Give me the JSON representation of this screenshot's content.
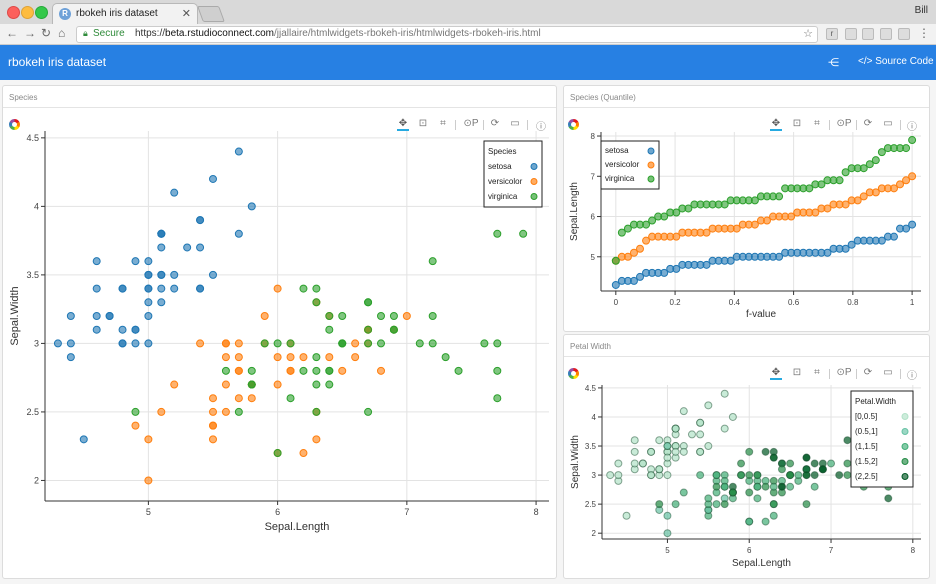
{
  "browser": {
    "tab_title": "rbokeh iris dataset",
    "tab_favicon": "R",
    "user": "Bill",
    "secure_label": "Secure",
    "url_scheme": "https://",
    "url_host": "beta.rstudioconnect.com",
    "url_path": "/jjallaire/htmlwidgets-rbokeh-iris/htmlwidgets-rbokeh-iris.html"
  },
  "navbar": {
    "title": "rbokeh iris dataset",
    "source_label": "Source Code"
  },
  "panels": {
    "species": "Species",
    "quantile": "Species (Quantile)",
    "petal": "Petal Width"
  },
  "icons": [
    "logo-icon",
    "pan-icon",
    "box-zoom-icon",
    "resize-icon",
    "wheel-zoom-icon",
    "reset-icon",
    "save-icon",
    "help-icon",
    "share-icon",
    "code-icon",
    "lock-icon",
    "star-icon",
    "back-icon",
    "forward-icon",
    "reload-icon",
    "home-icon",
    "menu-icon"
  ],
  "colors": {
    "setosa": "#1f77b4",
    "versicolor": "#ff7f0e",
    "virginica": "#2ca02c",
    "navbar": "#2780e3"
  },
  "chart_data": [
    {
      "type": "scatter",
      "title": "",
      "xlabel": "Sepal.Length",
      "ylabel": "Sepal.Width",
      "xlim": [
        4.2,
        8.1
      ],
      "ylim": [
        1.85,
        4.55
      ],
      "xticks": [
        5,
        6,
        7,
        8
      ],
      "yticks": [
        2,
        2.5,
        3,
        3.5,
        4,
        4.5
      ],
      "legend": {
        "title": "Species",
        "position": "top-right"
      },
      "series": [
        {
          "name": "setosa",
          "color": "#1f77b4",
          "points": [
            [
              5.1,
              3.5
            ],
            [
              4.9,
              3.0
            ],
            [
              4.7,
              3.2
            ],
            [
              4.6,
              3.1
            ],
            [
              5.0,
              3.6
            ],
            [
              5.4,
              3.9
            ],
            [
              4.6,
              3.4
            ],
            [
              5.0,
              3.4
            ],
            [
              4.4,
              2.9
            ],
            [
              4.9,
              3.1
            ],
            [
              5.4,
              3.7
            ],
            [
              4.8,
              3.4
            ],
            [
              4.8,
              3.0
            ],
            [
              4.3,
              3.0
            ],
            [
              5.8,
              4.0
            ],
            [
              5.7,
              4.4
            ],
            [
              5.4,
              3.9
            ],
            [
              5.1,
              3.5
            ],
            [
              5.7,
              3.8
            ],
            [
              5.1,
              3.8
            ],
            [
              5.4,
              3.4
            ],
            [
              5.1,
              3.7
            ],
            [
              4.6,
              3.6
            ],
            [
              5.1,
              3.3
            ],
            [
              4.8,
              3.4
            ],
            [
              5.0,
              3.0
            ],
            [
              5.0,
              3.4
            ],
            [
              5.2,
              3.5
            ],
            [
              5.2,
              3.4
            ],
            [
              4.7,
              3.2
            ],
            [
              4.8,
              3.1
            ],
            [
              5.4,
              3.4
            ],
            [
              5.2,
              4.1
            ],
            [
              5.5,
              4.2
            ],
            [
              4.9,
              3.1
            ],
            [
              5.0,
              3.2
            ],
            [
              5.5,
              3.5
            ],
            [
              4.9,
              3.6
            ],
            [
              4.4,
              3.0
            ],
            [
              5.1,
              3.4
            ],
            [
              5.0,
              3.5
            ],
            [
              4.5,
              2.3
            ],
            [
              4.4,
              3.2
            ],
            [
              5.0,
              3.5
            ],
            [
              5.1,
              3.8
            ],
            [
              4.8,
              3.0
            ],
            [
              5.1,
              3.8
            ],
            [
              4.6,
              3.2
            ],
            [
              5.3,
              3.7
            ],
            [
              5.0,
              3.3
            ]
          ]
        },
        {
          "name": "versicolor",
          "color": "#ff7f0e",
          "points": [
            [
              7.0,
              3.2
            ],
            [
              6.4,
              3.2
            ],
            [
              6.9,
              3.1
            ],
            [
              5.5,
              2.3
            ],
            [
              6.5,
              2.8
            ],
            [
              5.7,
              2.8
            ],
            [
              6.3,
              3.3
            ],
            [
              4.9,
              2.4
            ],
            [
              6.6,
              2.9
            ],
            [
              5.2,
              2.7
            ],
            [
              5.0,
              2.0
            ],
            [
              5.9,
              3.0
            ],
            [
              6.0,
              2.2
            ],
            [
              6.1,
              2.9
            ],
            [
              5.6,
              2.9
            ],
            [
              6.7,
              3.1
            ],
            [
              5.6,
              3.0
            ],
            [
              5.8,
              2.7
            ],
            [
              6.2,
              2.2
            ],
            [
              5.6,
              2.5
            ],
            [
              5.9,
              3.2
            ],
            [
              6.1,
              2.8
            ],
            [
              6.3,
              2.5
            ],
            [
              6.1,
              2.8
            ],
            [
              6.4,
              2.9
            ],
            [
              6.6,
              3.0
            ],
            [
              6.8,
              2.8
            ],
            [
              6.7,
              3.0
            ],
            [
              6.0,
              2.9
            ],
            [
              5.7,
              2.6
            ],
            [
              5.5,
              2.4
            ],
            [
              5.5,
              2.4
            ],
            [
              5.8,
              2.7
            ],
            [
              6.0,
              2.7
            ],
            [
              5.4,
              3.0
            ],
            [
              6.0,
              3.4
            ],
            [
              6.7,
              3.1
            ],
            [
              6.3,
              2.3
            ],
            [
              5.6,
              3.0
            ],
            [
              5.5,
              2.5
            ],
            [
              5.5,
              2.6
            ],
            [
              6.1,
              3.0
            ],
            [
              5.8,
              2.6
            ],
            [
              5.0,
              2.3
            ],
            [
              5.6,
              2.7
            ],
            [
              5.7,
              3.0
            ],
            [
              5.7,
              2.9
            ],
            [
              6.2,
              2.9
            ],
            [
              5.1,
              2.5
            ],
            [
              5.7,
              2.8
            ]
          ]
        },
        {
          "name": "virginica",
          "color": "#2ca02c",
          "points": [
            [
              6.3,
              3.3
            ],
            [
              5.8,
              2.7
            ],
            [
              7.1,
              3.0
            ],
            [
              6.3,
              2.9
            ],
            [
              6.5,
              3.0
            ],
            [
              7.6,
              3.0
            ],
            [
              4.9,
              2.5
            ],
            [
              7.3,
              2.9
            ],
            [
              6.7,
              2.5
            ],
            [
              7.2,
              3.6
            ],
            [
              6.5,
              3.2
            ],
            [
              6.4,
              2.7
            ],
            [
              6.8,
              3.0
            ],
            [
              5.7,
              2.5
            ],
            [
              5.8,
              2.8
            ],
            [
              6.4,
              3.2
            ],
            [
              6.5,
              3.0
            ],
            [
              7.7,
              3.8
            ],
            [
              7.7,
              2.6
            ],
            [
              6.0,
              2.2
            ],
            [
              6.9,
              3.2
            ],
            [
              5.6,
              2.8
            ],
            [
              7.7,
              2.8
            ],
            [
              6.3,
              2.7
            ],
            [
              6.7,
              3.3
            ],
            [
              7.2,
              3.2
            ],
            [
              6.2,
              2.8
            ],
            [
              6.1,
              3.0
            ],
            [
              6.4,
              2.8
            ],
            [
              7.2,
              3.0
            ],
            [
              7.4,
              2.8
            ],
            [
              7.9,
              3.8
            ],
            [
              6.4,
              2.8
            ],
            [
              6.3,
              2.8
            ],
            [
              6.1,
              2.6
            ],
            [
              7.7,
              3.0
            ],
            [
              6.3,
              3.4
            ],
            [
              6.4,
              3.1
            ],
            [
              6.0,
              3.0
            ],
            [
              6.9,
              3.1
            ],
            [
              6.7,
              3.1
            ],
            [
              6.9,
              3.1
            ],
            [
              5.8,
              2.7
            ],
            [
              6.8,
              3.2
            ],
            [
              6.7,
              3.3
            ],
            [
              6.7,
              3.0
            ],
            [
              6.3,
              2.5
            ],
            [
              6.5,
              3.0
            ],
            [
              6.2,
              3.4
            ],
            [
              5.9,
              3.0
            ]
          ]
        }
      ]
    },
    {
      "type": "scatter",
      "title": "",
      "xlabel": "f-value",
      "ylabel": "Sepal.Length",
      "xlim": [
        -0.05,
        1.03
      ],
      "ylim": [
        4.15,
        8.1
      ],
      "xticks": [
        0,
        0.2,
        0.4,
        0.6,
        0.8,
        1
      ],
      "yticks": [
        5,
        6,
        7,
        8
      ],
      "legend": {
        "title": "",
        "position": "top-left"
      },
      "series": [
        {
          "name": "setosa",
          "color": "#1f77b4",
          "values": [
            4.3,
            4.4,
            4.4,
            4.4,
            4.5,
            4.6,
            4.6,
            4.6,
            4.6,
            4.7,
            4.7,
            4.8,
            4.8,
            4.8,
            4.8,
            4.8,
            4.9,
            4.9,
            4.9,
            4.9,
            5.0,
            5.0,
            5.0,
            5.0,
            5.0,
            5.0,
            5.0,
            5.0,
            5.1,
            5.1,
            5.1,
            5.1,
            5.1,
            5.1,
            5.1,
            5.1,
            5.2,
            5.2,
            5.2,
            5.3,
            5.4,
            5.4,
            5.4,
            5.4,
            5.4,
            5.5,
            5.5,
            5.7,
            5.7,
            5.8
          ]
        },
        {
          "name": "versicolor",
          "color": "#ff7f0e",
          "values": [
            4.9,
            5.0,
            5.0,
            5.1,
            5.2,
            5.4,
            5.5,
            5.5,
            5.5,
            5.5,
            5.5,
            5.6,
            5.6,
            5.6,
            5.6,
            5.6,
            5.7,
            5.7,
            5.7,
            5.7,
            5.7,
            5.8,
            5.8,
            5.8,
            5.9,
            5.9,
            6.0,
            6.0,
            6.0,
            6.0,
            6.1,
            6.1,
            6.1,
            6.1,
            6.2,
            6.2,
            6.3,
            6.3,
            6.3,
            6.4,
            6.4,
            6.5,
            6.6,
            6.6,
            6.7,
            6.7,
            6.7,
            6.8,
            6.9,
            7.0
          ]
        },
        {
          "name": "virginica",
          "color": "#2ca02c",
          "values": [
            4.9,
            5.6,
            5.7,
            5.8,
            5.8,
            5.8,
            5.9,
            6.0,
            6.0,
            6.1,
            6.1,
            6.2,
            6.2,
            6.3,
            6.3,
            6.3,
            6.3,
            6.3,
            6.3,
            6.4,
            6.4,
            6.4,
            6.4,
            6.4,
            6.5,
            6.5,
            6.5,
            6.5,
            6.7,
            6.7,
            6.7,
            6.7,
            6.7,
            6.8,
            6.8,
            6.9,
            6.9,
            6.9,
            7.1,
            7.2,
            7.2,
            7.2,
            7.3,
            7.4,
            7.6,
            7.7,
            7.7,
            7.7,
            7.7,
            7.9
          ]
        }
      ]
    },
    {
      "type": "scatter",
      "title": "",
      "xlabel": "Sepal.Length",
      "ylabel": "Sepal.Width",
      "xlim": [
        4.2,
        8.1
      ],
      "ylim": [
        1.9,
        4.55
      ],
      "xticks": [
        5,
        6,
        7,
        8
      ],
      "yticks": [
        2,
        2.5,
        3,
        3.5,
        4,
        4.5
      ],
      "legend": {
        "title": "Petal.Width",
        "position": "top-right"
      },
      "bins": [
        {
          "name": "[0,0.5]",
          "color": "#b2e2c8"
        },
        {
          "name": "(0.5,1]",
          "color": "#66c2a4"
        },
        {
          "name": "(1,1.5]",
          "color": "#41ae76"
        },
        {
          "name": "(1.5,2]",
          "color": "#238b45"
        },
        {
          "name": "(2,2.5]",
          "color": "#005824"
        }
      ],
      "points_source": "same Sepal.Length/Sepal.Width points as panel 1, colored by Petal.Width bin",
      "petal_width": {
        "setosa": [
          0.2,
          0.2,
          0.2,
          0.2,
          0.2,
          0.4,
          0.3,
          0.2,
          0.2,
          0.1,
          0.2,
          0.2,
          0.1,
          0.1,
          0.2,
          0.4,
          0.4,
          0.3,
          0.3,
          0.3,
          0.2,
          0.4,
          0.2,
          0.5,
          0.2,
          0.2,
          0.4,
          0.2,
          0.2,
          0.2,
          0.2,
          0.4,
          0.1,
          0.2,
          0.2,
          0.2,
          0.2,
          0.1,
          0.2,
          0.2,
          0.3,
          0.3,
          0.2,
          0.6,
          0.4,
          0.3,
          0.2,
          0.2,
          0.2,
          0.2
        ],
        "versicolor": [
          1.4,
          1.5,
          1.5,
          1.3,
          1.5,
          1.3,
          1.6,
          1.0,
          1.3,
          1.4,
          1.0,
          1.5,
          1.0,
          1.4,
          1.3,
          1.4,
          1.5,
          1.0,
          1.5,
          1.1,
          1.8,
          1.3,
          1.5,
          1.2,
          1.3,
          1.4,
          1.4,
          1.7,
          1.5,
          1.0,
          1.1,
          1.0,
          1.2,
          1.6,
          1.5,
          1.6,
          1.5,
          1.3,
          1.3,
          1.3,
          1.2,
          1.4,
          1.2,
          1.0,
          1.3,
          1.2,
          1.3,
          1.3,
          1.1,
          1.3
        ],
        "virginica": [
          2.5,
          1.9,
          2.1,
          1.8,
          2.2,
          2.1,
          1.7,
          1.8,
          1.8,
          2.5,
          2.0,
          1.9,
          2.1,
          2.0,
          2.4,
          2.3,
          1.8,
          2.2,
          2.3,
          1.5,
          2.3,
          2.0,
          2.0,
          1.8,
          2.1,
          1.8,
          1.8,
          1.8,
          2.1,
          1.6,
          1.9,
          2.0,
          2.2,
          1.5,
          1.4,
          2.3,
          2.4,
          1.8,
          1.8,
          2.1,
          2.4,
          2.3,
          1.9,
          2.3,
          2.5,
          2.3,
          1.9,
          2.0,
          2.3,
          1.8
        ]
      }
    }
  ]
}
